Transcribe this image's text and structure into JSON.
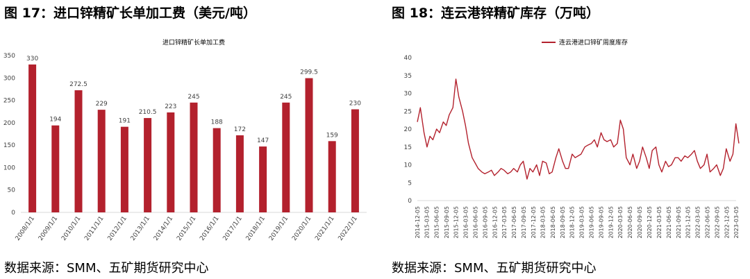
{
  "left": {
    "figure_title": "图 17：进口锌精矿长单加工费（美元/吨）",
    "source": "数据来源：SMM、五矿期货研究中心"
  },
  "right": {
    "figure_title": "图 18：连云港锌精矿库存（万吨）",
    "source": "数据来源：SMM、五矿期货研究中心"
  },
  "colors": {
    "series": "#b3212d",
    "axis": "#d9d9d9",
    "text": "#404040"
  },
  "chart_data": [
    {
      "type": "bar",
      "title": "进口锌精矿长单加工费",
      "categories": [
        "2008/1/1",
        "2009/1/1",
        "2010/1/1",
        "2011/1/1",
        "2012/1/1",
        "2013/1/1",
        "2014/1/1",
        "2015/1/1",
        "2016/1/1",
        "2017/1/1",
        "2018/1/1",
        "2019/1/1",
        "2020/1/1",
        "2021/1/1",
        "2022/1/1"
      ],
      "values": [
        330,
        194,
        272.5,
        229,
        191,
        210.5,
        223,
        245,
        188,
        172,
        147,
        245,
        299.5,
        159,
        230
      ],
      "data_labels": [
        "330",
        "194",
        "272.5",
        "229",
        "191",
        "210.5",
        "223",
        "245",
        "188",
        "172",
        "147",
        "245",
        "299.5",
        "159",
        "230"
      ],
      "ylim": [
        0,
        350
      ],
      "yticks": [
        0,
        50,
        100,
        150,
        200,
        250,
        300,
        350
      ],
      "grid": false,
      "legend": "none"
    },
    {
      "type": "line",
      "series": [
        {
          "name": "连云港进口锌矿周度库存",
          "x": [
            "2014-12-05",
            "2015-01-02",
            "2015-02-06",
            "2015-03-06",
            "2015-04-03",
            "2015-05-01",
            "2015-06-05",
            "2015-07-03",
            "2015-08-07",
            "2015-09-04",
            "2015-10-02",
            "2015-11-06",
            "2015-12-04",
            "2016-01-01",
            "2016-02-05",
            "2016-03-04",
            "2016-04-01",
            "2016-05-06",
            "2016-06-03",
            "2016-07-01",
            "2016-08-05",
            "2016-09-02",
            "2016-10-07",
            "2016-11-04",
            "2016-12-02",
            "2017-01-06",
            "2017-02-03",
            "2017-03-03",
            "2017-04-07",
            "2017-05-05",
            "2017-06-02",
            "2017-07-07",
            "2017-08-04",
            "2017-09-01",
            "2017-10-06",
            "2017-11-03",
            "2017-12-01",
            "2018-01-05",
            "2018-02-02",
            "2018-03-02",
            "2018-04-06",
            "2018-05-04",
            "2018-06-01",
            "2018-07-06",
            "2018-08-03",
            "2018-09-07",
            "2018-10-05",
            "2018-11-02",
            "2018-12-07",
            "2019-01-04",
            "2019-02-01",
            "2019-03-01",
            "2019-04-05",
            "2019-05-03",
            "2019-06-07",
            "2019-07-05",
            "2019-08-02",
            "2019-09-06",
            "2019-10-04",
            "2019-11-01",
            "2019-12-06",
            "2020-01-03",
            "2020-02-07",
            "2020-03-06",
            "2020-04-03",
            "2020-05-01",
            "2020-06-05",
            "2020-07-03",
            "2020-08-07",
            "2020-09-04",
            "2020-10-02",
            "2020-11-06",
            "2020-12-04",
            "2021-01-01",
            "2021-02-05",
            "2021-03-05",
            "2021-04-02",
            "2021-05-07",
            "2021-06-04",
            "2021-07-02",
            "2021-08-06",
            "2021-09-03",
            "2021-10-01",
            "2021-11-05",
            "2021-12-03",
            "2022-01-07",
            "2022-02-04",
            "2022-03-04",
            "2022-04-01",
            "2022-05-06",
            "2022-06-03",
            "2022-07-01",
            "2022-08-05",
            "2022-09-02",
            "2022-10-07",
            "2022-11-04",
            "2022-12-02",
            "2023-01-06",
            "2023-02-03",
            "2023-03-03",
            "2023-03-31"
          ],
          "y": [
            22,
            26,
            19,
            15,
            18,
            17,
            20,
            19,
            22,
            21,
            24,
            26,
            34,
            29,
            25,
            21,
            16,
            12,
            10.5,
            9,
            8,
            7.5,
            8,
            8.5,
            7,
            8,
            9,
            8.5,
            7.5,
            8,
            9,
            8,
            10,
            11,
            6,
            9,
            8,
            10,
            7,
            11,
            10.5,
            7.5,
            8,
            12,
            14.5,
            11,
            9,
            9,
            13,
            12,
            12.5,
            13,
            15,
            15.5,
            16,
            17,
            15,
            19,
            17,
            16.5,
            17,
            15,
            16,
            22.5,
            20,
            12,
            10,
            13,
            9,
            11,
            15,
            12,
            9,
            14,
            15,
            10,
            8,
            11,
            9.5,
            10,
            12,
            12,
            11,
            12.5,
            12,
            13,
            14,
            11,
            9,
            10,
            13,
            8,
            9,
            10,
            7,
            9,
            14.5,
            11,
            13,
            21.5,
            16
          ]
        }
      ],
      "xticks": [
        "2014-12-05",
        "2015-03-05",
        "2015-06-05",
        "2015-09-05",
        "2015-12-05",
        "2016-03-05",
        "2016-06-05",
        "2016-09-05",
        "2016-12-05",
        "2017-03-05",
        "2017-06-05",
        "2017-09-05",
        "2017-12-05",
        "2018-03-05",
        "2018-06-05",
        "2018-09-05",
        "2018-12-05",
        "2019-03-05",
        "2019-06-05",
        "2019-09-05",
        "2019-12-05",
        "2020-03-05",
        "2020-06-05",
        "2020-09-05",
        "2020-12-05",
        "2021-03-05",
        "2021-06-05",
        "2021-09-05",
        "2021-12-05",
        "2022-03-05",
        "2022-06-05",
        "2022-09-05",
        "2022-12-05",
        "2023-03-05"
      ],
      "ylim": [
        0,
        40
      ],
      "yticks": [
        0,
        5,
        10,
        15,
        20,
        25,
        30,
        35,
        40
      ],
      "grid": false,
      "legend": "top-center"
    }
  ]
}
